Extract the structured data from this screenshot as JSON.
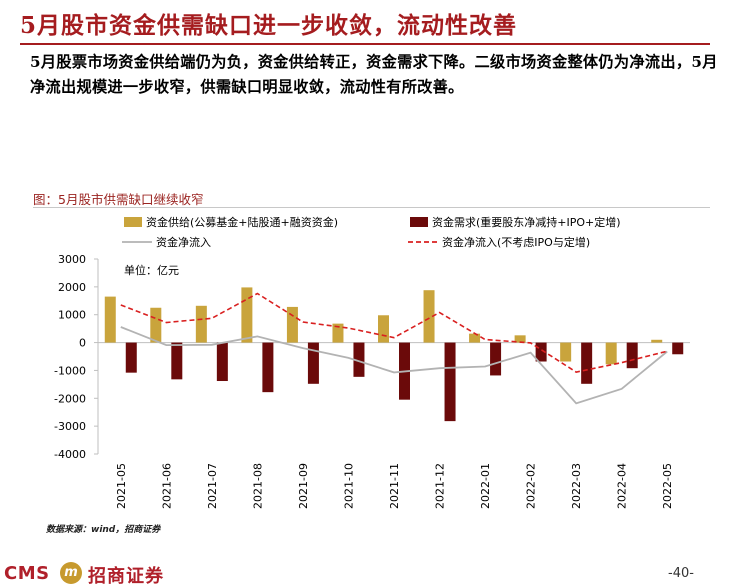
{
  "page": {
    "title": "5月股市资金供需缺口进一步收敛，流动性改善",
    "summary": "5月股票市场资金供给端仍为负，资金供给转正，资金需求下降。二级市场资金整体仍为净流出，5月净流出规模进一步收窄，供需缺口明显收敛，流动性有所改善。",
    "figure_caption": "图：5月股市供需缺口继续收窄",
    "source": "数据来源：wind，招商证券",
    "brand_cms": "CMS",
    "brand_logo_glyph": "m",
    "brand_name": "招商证券",
    "page_number": "-40-",
    "colors": {
      "accent": "#a51c1f",
      "supply": "#c9a43c",
      "demand": "#6b0a0a",
      "net": "#b3b3b3",
      "net_adj": "#d92020"
    }
  },
  "chart_data": {
    "type": "bar",
    "title": "",
    "unit_label": "单位：亿元",
    "categories": [
      "2021-05",
      "2021-06",
      "2021-07",
      "2021-08",
      "2021-09",
      "2021-10",
      "2021-11",
      "2021-12",
      "2022-01",
      "2022-02",
      "2022-03",
      "2022-04",
      "2022-05"
    ],
    "ylim": [
      -4000,
      3000
    ],
    "yticks": [
      3000,
      2000,
      1000,
      0,
      -1000,
      -2000,
      -3000,
      -4000
    ],
    "series": [
      {
        "name": "资金供给(公募基金+陆股通+融资资金)",
        "kind": "bar",
        "color": "#c9a43c",
        "values": [
          1650,
          1250,
          1320,
          1980,
          1280,
          680,
          980,
          1880,
          320,
          260,
          -680,
          -780,
          100
        ]
      },
      {
        "name": "资金需求(重要股东净减持+IPO+定增)",
        "kind": "bar",
        "color": "#6b0a0a",
        "values": [
          -1080,
          -1320,
          -1380,
          -1780,
          -1480,
          -1230,
          -2050,
          -2820,
          -1180,
          -680,
          -1480,
          -920,
          -420
        ]
      },
      {
        "name": "资金净流入",
        "kind": "line",
        "color": "#b3b3b3",
        "dash": false,
        "values": [
          560,
          -90,
          -80,
          220,
          -200,
          -550,
          -1070,
          -920,
          -860,
          -360,
          -2180,
          -1660,
          -320
        ]
      },
      {
        "name": "资金净流入(不考虑IPO与定增)",
        "kind": "line",
        "color": "#d92020",
        "dash": true,
        "values": [
          1350,
          720,
          870,
          1760,
          740,
          520,
          180,
          1080,
          110,
          -10,
          -1060,
          -720,
          -310
        ]
      }
    ]
  }
}
